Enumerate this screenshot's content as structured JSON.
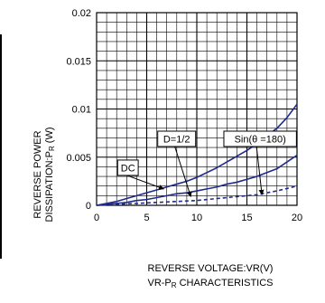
{
  "chart_data": {
    "type": "line",
    "ylabel_line1": "REVERSE POWER",
    "ylabel_line2_main": "DISSIPATION:P",
    "ylabel_line2_sub": "R",
    "ylabel_line2_unit": " (W)",
    "xlabel": "REVERSE VOLTAGE:VR(V)",
    "caption_main": "VR-P",
    "caption_sub": "R",
    "caption_rest": " CHARACTERISTICS",
    "xlim": [
      0,
      20
    ],
    "ylim": [
      0,
      0.02
    ],
    "x_major_ticks": [
      0,
      5,
      10,
      15,
      20
    ],
    "x_tick_labels": [
      "0",
      "5",
      "10",
      "15",
      "20"
    ],
    "y_major_ticks": [
      0,
      0.005,
      0.01,
      0.015,
      0.02
    ],
    "y_tick_labels": [
      "0",
      "0.005",
      "0.01",
      "0.015",
      "0.02"
    ],
    "minor_grid_x_step": 1,
    "minor_grid_y_step": 0.001,
    "grid": true,
    "series": [
      {
        "name": "DC",
        "style": "solid",
        "color": "#1f2a8c",
        "x": [
          0,
          1,
          2,
          3,
          4,
          5,
          6,
          7,
          8,
          9,
          10,
          11,
          12,
          13,
          14,
          15,
          16,
          17,
          18,
          19,
          20
        ],
        "y": [
          0,
          0.0002,
          0.0004,
          0.0007,
          0.001,
          0.0013,
          0.0016,
          0.0019,
          0.0022,
          0.0025,
          0.0029,
          0.0034,
          0.0039,
          0.0045,
          0.0051,
          0.0057,
          0.0064,
          0.0072,
          0.008,
          0.0091,
          0.0105
        ]
      },
      {
        "name": "D=1/2",
        "style": "solid",
        "color": "#1f2a8c",
        "x": [
          0,
          1,
          2,
          3,
          4,
          5,
          6,
          7,
          8,
          9,
          10,
          11,
          12,
          13,
          14,
          15,
          16,
          17,
          18,
          19,
          20
        ],
        "y": [
          0,
          0.0001,
          0.0002,
          0.0003,
          0.0005,
          0.0006,
          0.0008,
          0.001,
          0.0012,
          0.0013,
          0.0015,
          0.0017,
          0.0019,
          0.0022,
          0.0024,
          0.0027,
          0.003,
          0.0034,
          0.0038,
          0.0045,
          0.0052
        ]
      },
      {
        "name": "Sin(θ =180)",
        "style": "dashed",
        "color": "#1f2a8c",
        "x": [
          0,
          2,
          4,
          6,
          8,
          10,
          12,
          14,
          16,
          18,
          20
        ],
        "y": [
          0,
          0.0001,
          0.0002,
          0.0003,
          0.0004,
          0.0005,
          0.0007,
          0.0009,
          0.0011,
          0.0015,
          0.002
        ]
      }
    ],
    "annotations": [
      {
        "label": "DC",
        "box": [
          2.1,
          0.0047
        ],
        "arrow_to": [
          6.7,
          0.0017
        ]
      },
      {
        "label": "D=1/2",
        "box": [
          6.1,
          0.0077
        ],
        "arrow_to": [
          9.4,
          0.0009
        ]
      },
      {
        "label": "Sin(θ =180)",
        "box": [
          12.7,
          0.0077
        ],
        "arrow_to": [
          16.5,
          0.0011
        ]
      }
    ]
  }
}
